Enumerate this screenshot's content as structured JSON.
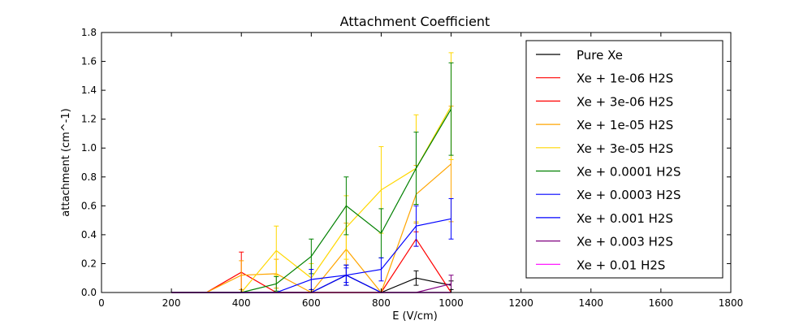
{
  "chart_data": {
    "type": "line",
    "title": "Attachment Coefficient",
    "xlabel": "E (V/cm)",
    "ylabel": "attachment (cm^-1)",
    "xlim": [
      0,
      1800
    ],
    "ylim": [
      0,
      1.8
    ],
    "xticks": [
      0,
      200,
      400,
      600,
      800,
      1000,
      1200,
      1400,
      1600,
      1800
    ],
    "yticks": [
      0.0,
      0.2,
      0.4,
      0.6,
      0.8,
      1.0,
      1.2,
      1.4,
      1.6,
      1.8
    ],
    "xtick_labels": [
      "0",
      "200",
      "400",
      "600",
      "800",
      "1000",
      "1200",
      "1400",
      "1600",
      "1800"
    ],
    "ytick_labels": [
      "0.0",
      "0.2",
      "0.4",
      "0.6",
      "0.8",
      "1.0",
      "1.2",
      "1.4",
      "1.6",
      "1.8"
    ],
    "grid": false,
    "legend_position": "top-right",
    "series": [
      {
        "name": "Pure Xe",
        "color": "#000000",
        "x": [
          200,
          300,
          400,
          500,
          600,
          700,
          800,
          900,
          1000
        ],
        "y": [
          0,
          0,
          0,
          0,
          0,
          0.12,
          0,
          0.1,
          0.05
        ],
        "err": [
          0,
          0,
          0,
          0,
          0,
          0.07,
          0,
          0.05,
          0.03
        ]
      },
      {
        "name": "Xe + 1e-06 H2S",
        "color": "#ff0000",
        "x": [
          200,
          300,
          400,
          500,
          600,
          700,
          800,
          900,
          1000
        ],
        "y": [
          0,
          0,
          0.14,
          0,
          0,
          0,
          0,
          0,
          0
        ],
        "err": [
          0,
          0,
          0.14,
          0,
          0,
          0,
          0,
          0,
          0
        ]
      },
      {
        "name": "Xe + 3e-06 H2S",
        "color": "#ff0000",
        "x": [
          200,
          300,
          400,
          500,
          600,
          700,
          800,
          900,
          1000
        ],
        "y": [
          0,
          0,
          0,
          0,
          0,
          0,
          0,
          0.37,
          0
        ],
        "err": [
          0,
          0,
          0,
          0,
          0,
          0,
          0,
          0.05,
          0
        ]
      },
      {
        "name": "Xe + 1e-05 H2S",
        "color": "#ffa500",
        "x": [
          200,
          300,
          400,
          500,
          600,
          700,
          800,
          900,
          1000
        ],
        "y": [
          0,
          0,
          0.12,
          0.13,
          0,
          0.3,
          0,
          0.68,
          0.89
        ],
        "err": [
          0,
          0,
          0.1,
          0.1,
          0,
          0.18,
          0,
          0.2,
          0.4
        ]
      },
      {
        "name": "Xe + 3e-05 H2S",
        "color": "#ffd700",
        "x": [
          200,
          300,
          400,
          500,
          600,
          700,
          800,
          900,
          1000
        ],
        "y": [
          0,
          0,
          0,
          0.29,
          0.1,
          0.45,
          0.71,
          0.86,
          1.29
        ],
        "err": [
          0,
          0,
          0,
          0.17,
          0.1,
          0.22,
          0.3,
          0.37,
          0.37
        ]
      },
      {
        "name": "Xe + 0.0001 H2S",
        "color": "#008000",
        "x": [
          200,
          300,
          400,
          500,
          600,
          700,
          800,
          900,
          1000
        ],
        "y": [
          0,
          0,
          0,
          0.06,
          0.25,
          0.6,
          0.41,
          0.86,
          1.27
        ],
        "err": [
          0,
          0,
          0,
          0.05,
          0.12,
          0.2,
          0.17,
          0.25,
          0.32
        ]
      },
      {
        "name": "Xe + 0.0003 H2S",
        "color": "#0000ff",
        "x": [
          200,
          300,
          400,
          500,
          600,
          700,
          800,
          900,
          1000
        ],
        "y": [
          0,
          0,
          0,
          0,
          0.09,
          0.12,
          0.16,
          0.46,
          0.51
        ],
        "err": [
          0,
          0,
          0,
          0,
          0.07,
          0.07,
          0.08,
          0.14,
          0.14
        ]
      },
      {
        "name": "Xe + 0.001 H2S",
        "color": "#0000ff",
        "x": [
          200,
          300,
          400,
          500,
          600,
          700,
          800,
          900,
          1000
        ],
        "y": [
          0,
          0,
          0,
          0,
          0,
          0.12,
          0,
          0,
          0
        ],
        "err": [
          0,
          0,
          0,
          0,
          0,
          0.05,
          0,
          0,
          0
        ]
      },
      {
        "name": "Xe + 0.003 H2S",
        "color": "#800080",
        "x": [
          200,
          300,
          400,
          500,
          600,
          700,
          800,
          900,
          1000
        ],
        "y": [
          0,
          0,
          0,
          0,
          0,
          0,
          0,
          0,
          0.06
        ],
        "err": [
          0,
          0,
          0,
          0,
          0,
          0,
          0,
          0,
          0.06
        ]
      },
      {
        "name": "Xe + 0.01 H2S",
        "color": "#ff00ff",
        "x": [
          200,
          300,
          400,
          500,
          600,
          700,
          800,
          900,
          1000
        ],
        "y": [
          0,
          0,
          0,
          0,
          0,
          0,
          0,
          0,
          0
        ],
        "err": [
          0,
          0,
          0,
          0,
          0,
          0,
          0,
          0,
          0
        ]
      }
    ]
  }
}
